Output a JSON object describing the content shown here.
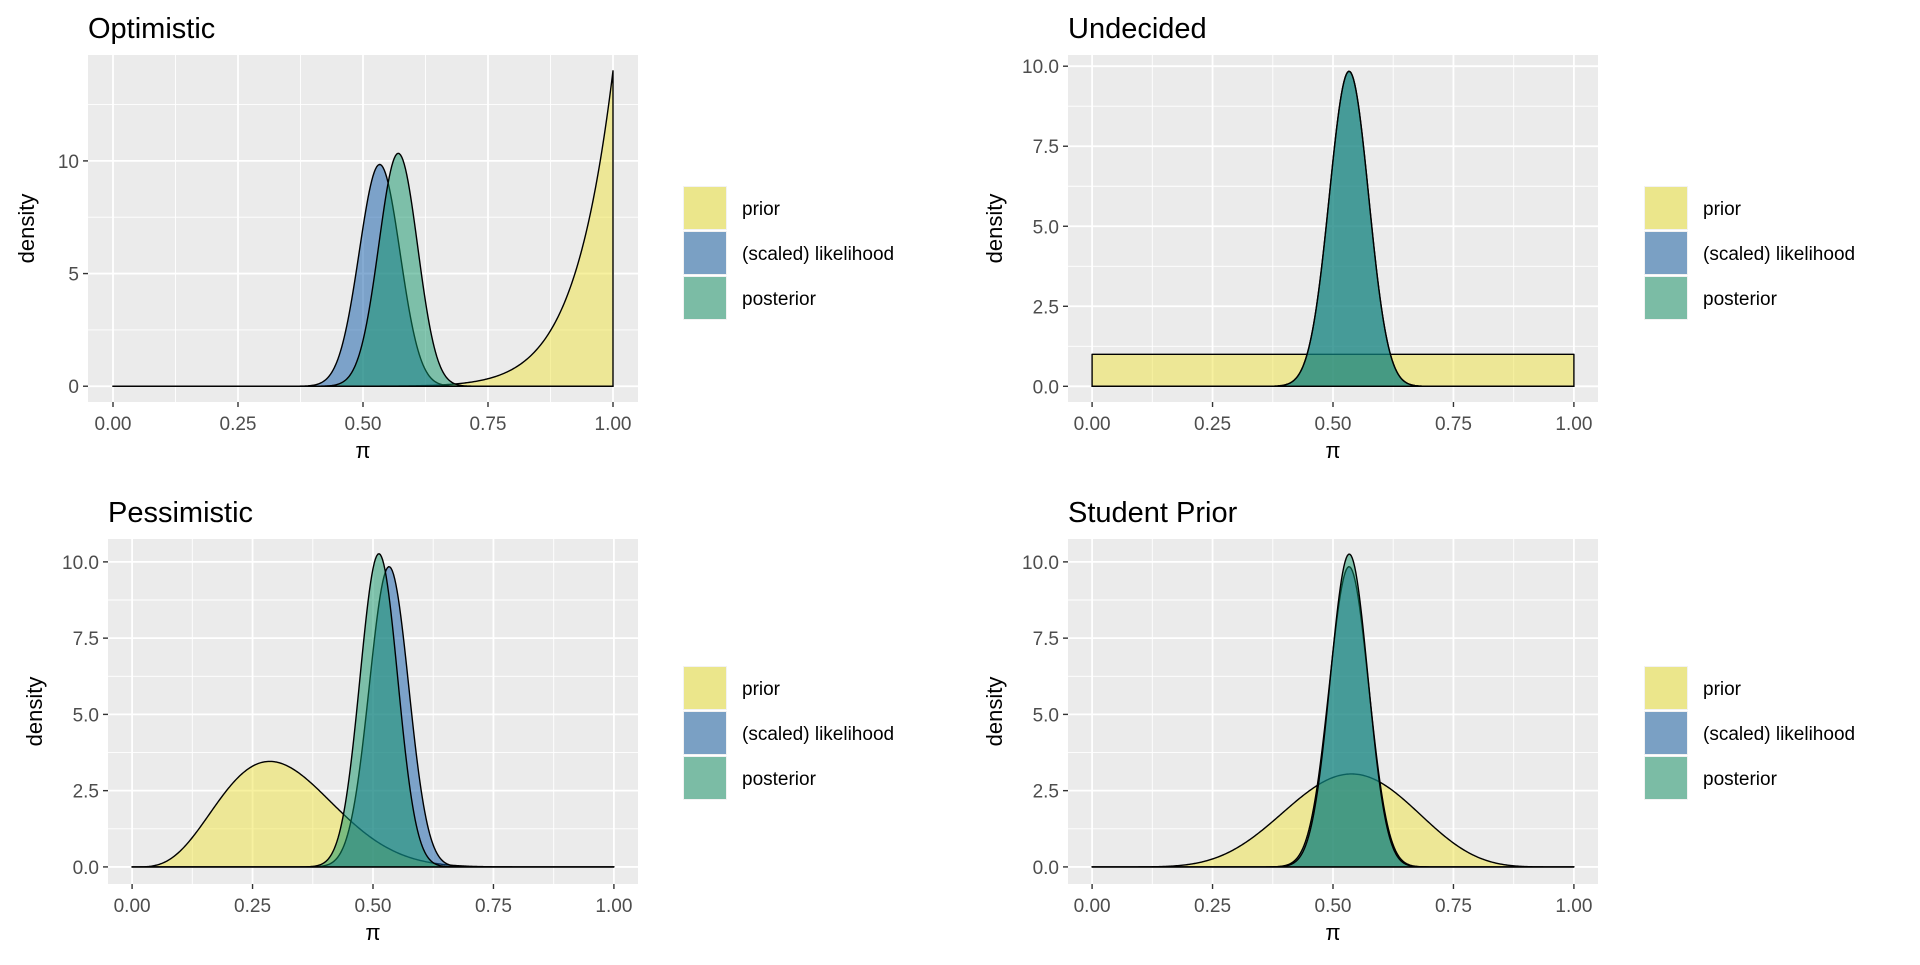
{
  "chart_data": [
    {
      "type": "area",
      "title": "Optimistic",
      "xlabel": "π",
      "ylabel": "density",
      "xlim": [
        -0.05,
        1.05
      ],
      "ylim": [
        -0.7,
        14.7
      ],
      "xticks": [
        "0.00",
        "0.25",
        "0.50",
        "0.75",
        "1.00"
      ],
      "yticks": [
        "0",
        "5",
        "10"
      ],
      "ytick_values": [
        0,
        5,
        10
      ],
      "grid": true,
      "series": [
        {
          "name": "prior",
          "dist": "beta",
          "alpha": 14,
          "beta": 1
        },
        {
          "name": "(scaled) likelihood",
          "dist": "beta",
          "alpha": 81,
          "beta": 71
        },
        {
          "name": "posterior",
          "dist": "beta",
          "alpha": 94,
          "beta": 71
        }
      ]
    },
    {
      "type": "area",
      "title": "Undecided",
      "xlabel": "π",
      "ylabel": "density",
      "xlim": [
        -0.05,
        1.05
      ],
      "ylim": [
        -0.49,
        10.35
      ],
      "xticks": [
        "0.00",
        "0.25",
        "0.50",
        "0.75",
        "1.00"
      ],
      "yticks": [
        "0.0",
        "2.5",
        "5.0",
        "7.5",
        "10.0"
      ],
      "ytick_values": [
        0,
        2.5,
        5,
        7.5,
        10
      ],
      "grid": true,
      "series": [
        {
          "name": "prior",
          "dist": "beta",
          "alpha": 1,
          "beta": 1
        },
        {
          "name": "(scaled) likelihood",
          "dist": "beta",
          "alpha": 81,
          "beta": 71
        },
        {
          "name": "posterior",
          "dist": "beta",
          "alpha": 81,
          "beta": 71
        }
      ]
    },
    {
      "type": "area",
      "title": "Pessimistic",
      "xlabel": "π",
      "ylabel": "density",
      "xlim": [
        -0.05,
        1.05
      ],
      "ylim": [
        -0.56,
        10.75
      ],
      "xticks": [
        "0.00",
        "0.25",
        "0.50",
        "0.75",
        "1.00"
      ],
      "yticks": [
        "0.0",
        "2.5",
        "5.0",
        "7.5",
        "10.0"
      ],
      "ytick_values": [
        0,
        2.5,
        5,
        7.5,
        10
      ],
      "grid": true,
      "series": [
        {
          "name": "prior",
          "dist": "beta",
          "alpha": 5,
          "beta": 11
        },
        {
          "name": "(scaled) likelihood",
          "dist": "beta",
          "alpha": 81,
          "beta": 71
        },
        {
          "name": "posterior",
          "dist": "beta",
          "alpha": 85,
          "beta": 81
        }
      ]
    },
    {
      "type": "area",
      "title": "Student Prior",
      "xlabel": "π",
      "ylabel": "density",
      "xlim": [
        -0.05,
        1.05
      ],
      "ylim": [
        -0.56,
        10.75
      ],
      "xticks": [
        "0.00",
        "0.25",
        "0.50",
        "0.75",
        "1.00"
      ],
      "yticks": [
        "0.0",
        "2.5",
        "5.0",
        "7.5",
        "10.0"
      ],
      "ytick_values": [
        0,
        2.5,
        5,
        7.5,
        10
      ],
      "grid": true,
      "series": [
        {
          "name": "prior",
          "dist": "beta",
          "alpha": 8,
          "beta": 7
        },
        {
          "name": "(scaled) likelihood",
          "dist": "beta",
          "alpha": 81,
          "beta": 71
        },
        {
          "name": "posterior",
          "dist": "beta",
          "alpha": 88,
          "beta": 77
        }
      ]
    }
  ],
  "legend": {
    "placement": "right",
    "items": [
      {
        "label": "prior",
        "color": "#ebe68b"
      },
      {
        "label": "(scaled) likelihood",
        "color": "#7aa0c4"
      },
      {
        "label": "posterior",
        "color": "#7bbca5"
      }
    ]
  },
  "colors": {
    "prior": "#f0e442",
    "likelihood": "#0e5aa7",
    "posterior": "#0f9468",
    "panel_bg": "#ebebeb"
  }
}
